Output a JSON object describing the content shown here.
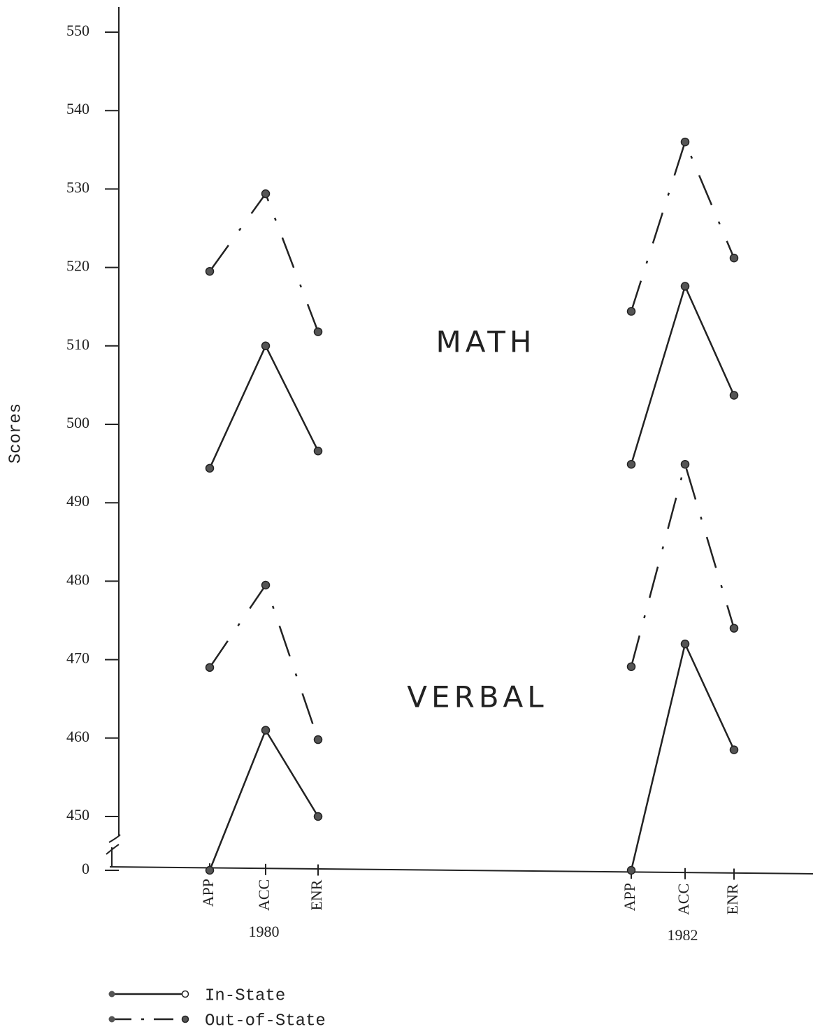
{
  "chart_data": {
    "type": "line",
    "y_label": "Scores",
    "ylim": [
      450,
      550
    ],
    "yticks": [
      0,
      450,
      460,
      470,
      480,
      490,
      500,
      510,
      520,
      530,
      540,
      550
    ],
    "axis_break": true,
    "categories": [
      "APP",
      "ACC",
      "ENR",
      "APP",
      "ACC",
      "ENR"
    ],
    "groups": [
      "1980",
      "1982"
    ],
    "legend": [
      {
        "name": "In-State",
        "dash": "solid",
        "color": "#222222"
      },
      {
        "name": "Out-of-State",
        "dash": "dashdot",
        "color": "#222222"
      }
    ],
    "subjects": [
      {
        "label": "MATH",
        "series": [
          {
            "legend_index": 0,
            "values": [
              494.4,
              510.0,
              496.6,
              494.9,
              517.6,
              503.7
            ]
          },
          {
            "legend_index": 1,
            "values": [
              519.5,
              529.4,
              511.8,
              514.4,
              536.0,
              521.2
            ]
          }
        ]
      },
      {
        "label": "VERBAL",
        "series": [
          {
            "legend_index": 0,
            "values": [
              448.6,
              461.0,
              450.0,
              449.0,
              472.0,
              458.5
            ]
          },
          {
            "legend_index": 1,
            "values": [
              469.0,
              479.5,
              459.8,
              469.1,
              494.9,
              474.0
            ]
          }
        ]
      }
    ]
  }
}
